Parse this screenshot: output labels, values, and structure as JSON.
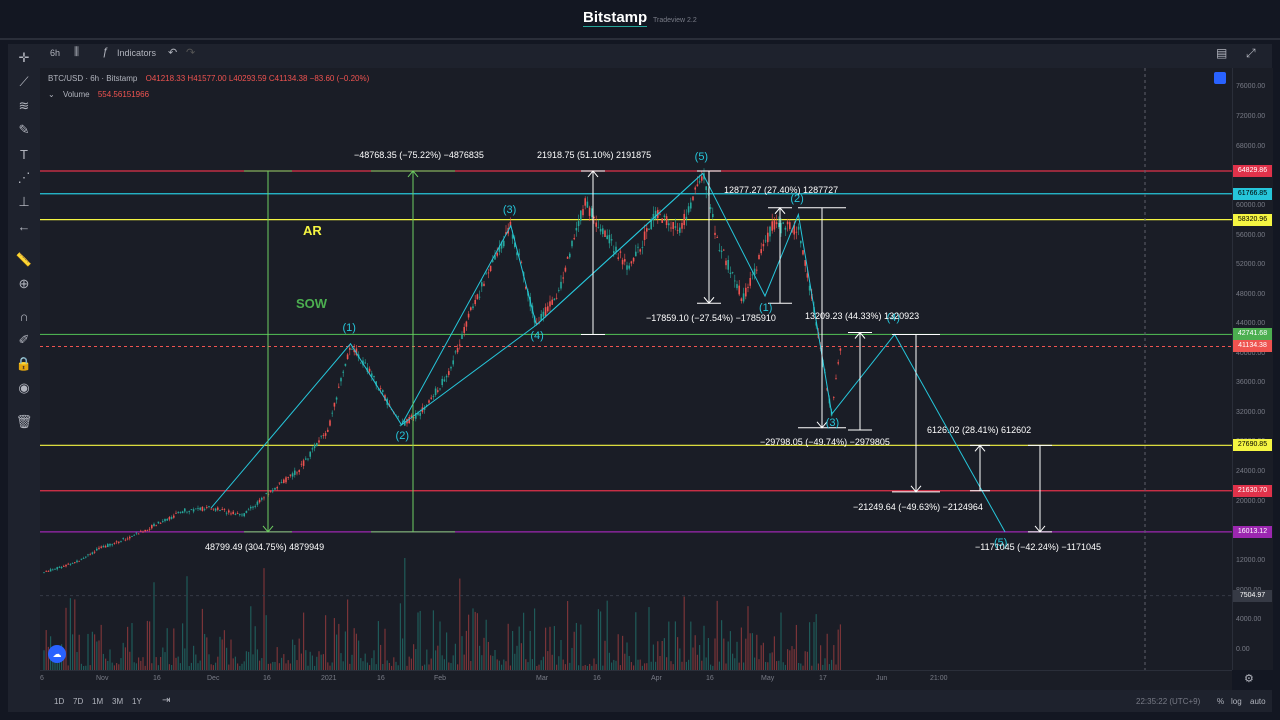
{
  "header": {
    "brand": "Bitstamp",
    "subtitle": "Tradeview 2.2",
    "interval": "6h",
    "indicators_label": "Indicators"
  },
  "legend": {
    "symbol": "BTC/USD · 6h · Bitstamp",
    "open": "O41218.33",
    "high": "H41577.00",
    "low": "L40293.59",
    "close": "C41134.38",
    "change": "−83.60 (−0.20%)",
    "volume_label": "Volume",
    "volume_value": "554.56151966"
  },
  "bottom": {
    "ranges": [
      "1D",
      "7D",
      "1M",
      "3M",
      "1Y"
    ],
    "clock": "22:35:22 (UTC+9)",
    "percent": "%",
    "log": "log",
    "auto": "auto"
  },
  "colors": {
    "up": "#26a69a",
    "down": "#ef5350",
    "wave": "#26c6da",
    "red_line": "#e0324a",
    "cyan_line": "#26c6da",
    "yellow_line": "#f5f542",
    "green_line": "#4caf50",
    "purple_line": "#9c27b0",
    "measure": "#ffffff",
    "range_green": "#6fcf62"
  },
  "chart_data": {
    "type": "line",
    "title": "BTC/USD · 6h · Bitstamp",
    "y_log_scale": true,
    "ylim": [
      -1000,
      78000
    ],
    "x_ticks": [
      "6",
      "Nov",
      "16",
      "Dec",
      "16",
      "2021",
      "16",
      "Feb",
      "Mar",
      "16",
      "Apr",
      "16",
      "May",
      "17",
      "Jun",
      "21:00"
    ],
    "y_ticks": [
      76000,
      72000,
      68000,
      64000,
      60000,
      56000,
      52000,
      48000,
      44000,
      40000,
      36000,
      32000,
      28000,
      24000,
      20000,
      16000,
      12000,
      8000,
      4000,
      0
    ],
    "y_tick_labels": [
      "76000.00",
      "72000.00",
      "68000.00",
      "64000.00",
      "60000.00",
      "56000.00",
      "52000.00",
      "48000.00",
      "44000.00",
      "40000.00",
      "36000.00",
      "32000.00",
      "28000.00",
      "24000.00",
      "20000.00",
      "16000.00",
      "12000.00",
      "8000.00",
      "4000.00",
      "0.00"
    ],
    "horizontal_levels": [
      {
        "value": 64829.86,
        "label": "64829.86",
        "color": "#e0324a"
      },
      {
        "value": 61766.85,
        "label": "61766.85",
        "color": "#26c6da"
      },
      {
        "value": 58320.96,
        "label": "58320.96",
        "color": "#f5f542"
      },
      {
        "value": 42741.68,
        "label": "42741.68",
        "color": "#4caf50"
      },
      {
        "value": 41134.38,
        "label": "41134.38",
        "color": "#ef5350"
      },
      {
        "value": 27690.85,
        "label": "27690.85",
        "color": "#f5f542"
      },
      {
        "value": 21630.7,
        "label": "21630.70",
        "color": "#e0324a"
      },
      {
        "value": 16013.12,
        "label": "16013.12",
        "color": "#9c27b0"
      },
      {
        "value": 7504.97,
        "label": "7504.97",
        "color": "#363a45"
      }
    ],
    "price_series": [
      {
        "x": "Oct 06",
        "y": 10600
      },
      {
        "x": "Oct 20",
        "y": 11900
      },
      {
        "x": "Nov 01",
        "y": 13800
      },
      {
        "x": "Nov 10",
        "y": 15500
      },
      {
        "x": "Nov 24",
        "y": 19000
      },
      {
        "x": "Dec 01",
        "y": 19300
      },
      {
        "x": "Dec 10",
        "y": 18400
      },
      {
        "x": "Dec 16",
        "y": 21000
      },
      {
        "x": "Dec 25",
        "y": 24500
      },
      {
        "x": "Jan 02",
        "y": 30000
      },
      {
        "x": "Jan 08",
        "y": 41500
      },
      {
        "x": "Jan 14",
        "y": 37000
      },
      {
        "x": "Jan 22",
        "y": 30500
      },
      {
        "x": "Jan 28",
        "y": 32500
      },
      {
        "x": "Feb 04",
        "y": 37500
      },
      {
        "x": "Feb 10",
        "y": 46000
      },
      {
        "x": "Feb 21",
        "y": 57500
      },
      {
        "x": "Feb 28",
        "y": 44000
      },
      {
        "x": "Mar 06",
        "y": 48500
      },
      {
        "x": "Mar 13",
        "y": 60500
      },
      {
        "x": "Mar 25",
        "y": 51500
      },
      {
        "x": "Apr 01",
        "y": 59000
      },
      {
        "x": "Apr 08",
        "y": 57000
      },
      {
        "x": "Apr 14",
        "y": 64500
      },
      {
        "x": "Apr 18",
        "y": 55500
      },
      {
        "x": "Apr 25",
        "y": 47500
      },
      {
        "x": "May 03",
        "y": 57500
      },
      {
        "x": "May 10",
        "y": 57000
      },
      {
        "x": "May 13",
        "y": 49500
      },
      {
        "x": "May 19",
        "y": 32000
      },
      {
        "x": "May 21",
        "y": 40500
      },
      {
        "x": "May 23",
        "y": 41134
      }
    ],
    "wave_labels": [
      {
        "text": "(1)",
        "x": "Jan 08",
        "y": 41500
      },
      {
        "text": "(2)",
        "x": "Jan 22",
        "y": 30500
      },
      {
        "text": "(3)",
        "x": "Feb 21",
        "y": 57500
      },
      {
        "text": "(4)",
        "x": "Feb 28",
        "y": 44000
      },
      {
        "text": "(5)",
        "x": "Apr 14",
        "y": 64500
      },
      {
        "text": "(1)",
        "x": "May 01",
        "y": 48000
      },
      {
        "text": "(2)",
        "x": "May 10",
        "y": 59000
      },
      {
        "text": "(3)",
        "x": "May 19",
        "y": 32000
      },
      {
        "text": "(4)",
        "x": "Jun 05",
        "y": 42741
      },
      {
        "text": "(5)",
        "x": "Jun 18",
        "y": 16013
      }
    ],
    "annotations": [
      {
        "text": "48799.49 (304.75%) 4879949",
        "type": "price-range",
        "from": 16013,
        "to": 64829
      },
      {
        "text": "−48768.35 (−75.22%) −4876835",
        "type": "price-range",
        "from": 64829,
        "to": 16013
      },
      {
        "text": "21918.75 (51.10%) 2191875",
        "type": "price-range",
        "from": 42741,
        "to": 64829
      },
      {
        "text": "12877.27 (27.40%) 1287727",
        "type": "price-range",
        "from": 47000,
        "to": 59900
      },
      {
        "text": "−17859.10 (−27.54%) −1785910",
        "type": "price-range",
        "from": 64829,
        "to": 47000
      },
      {
        "text": "13209.23 (44.33%) 1320923",
        "type": "price-range",
        "from": 29800,
        "to": 43000
      },
      {
        "text": "−29798.05 (−49.74%) −2979805",
        "type": "price-range",
        "from": 59900,
        "to": 30100
      },
      {
        "text": "6126.02 (28.41%) 612602",
        "type": "price-range",
        "from": 21630,
        "to": 27690
      },
      {
        "text": "−21249.64 (−49.63%) −2124964",
        "type": "price-range",
        "from": 42741,
        "to": 21490
      },
      {
        "text": "−1171045 (−42.24%) −1171045",
        "type": "price-range",
        "from": 27690,
        "to": 16013
      }
    ],
    "text_labels": [
      {
        "text": "AR",
        "color": "#f5f542"
      },
      {
        "text": "SOW",
        "color": "#4caf50"
      }
    ]
  }
}
